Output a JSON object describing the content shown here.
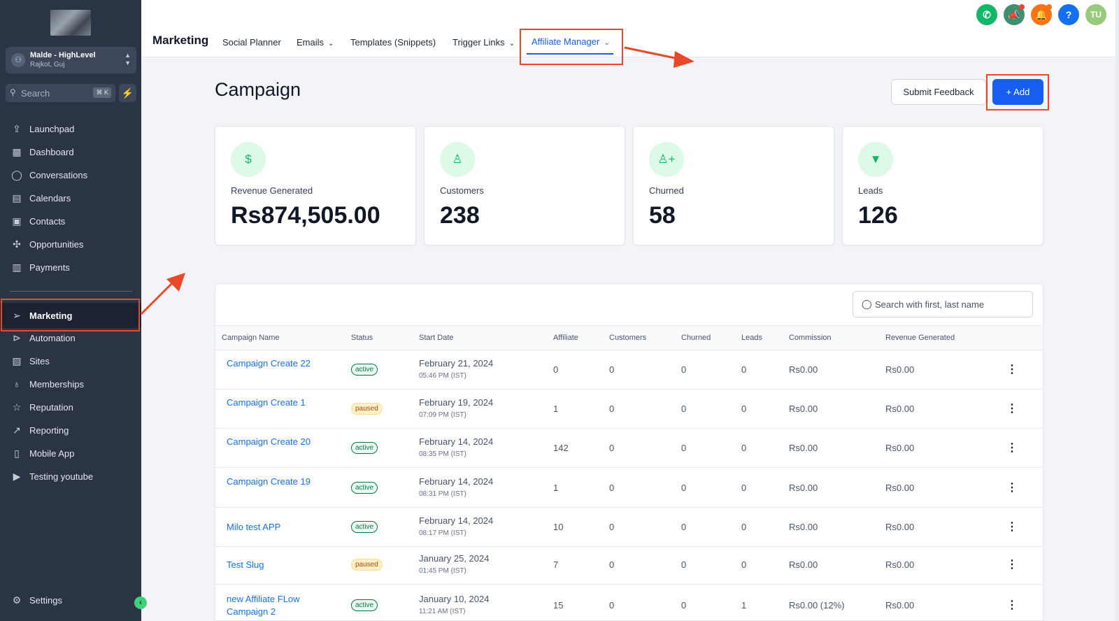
{
  "sidebar": {
    "account": {
      "name": "Malde - HighLevel",
      "location": "Rajkot, Guj"
    },
    "search": {
      "placeholder": "Search",
      "shortcut": "⌘ K"
    },
    "items": [
      {
        "label": "Launchpad",
        "icon": "rocket-icon"
      },
      {
        "label": "Dashboard",
        "icon": "dashboard-icon"
      },
      {
        "label": "Conversations",
        "icon": "chat-icon"
      },
      {
        "label": "Calendars",
        "icon": "calendar-icon"
      },
      {
        "label": "Contacts",
        "icon": "contacts-icon"
      },
      {
        "label": "Opportunities",
        "icon": "opportunities-icon"
      },
      {
        "label": "Payments",
        "icon": "payments-icon"
      },
      {
        "label": "Marketing",
        "icon": "send-icon"
      },
      {
        "label": "Automation",
        "icon": "automation-icon"
      },
      {
        "label": "Sites",
        "icon": "sites-icon"
      },
      {
        "label": "Memberships",
        "icon": "memberships-icon"
      },
      {
        "label": "Reputation",
        "icon": "star-icon"
      },
      {
        "label": "Reporting",
        "icon": "reporting-icon"
      },
      {
        "label": "Mobile App",
        "icon": "mobile-icon"
      },
      {
        "label": "Testing youtube",
        "icon": "youtube-icon"
      }
    ],
    "settings": "Settings"
  },
  "topbar": {
    "title": "Marketing",
    "tabs": [
      {
        "label": "Social Planner"
      },
      {
        "label": "Emails"
      },
      {
        "label": "Templates (Snippets)"
      },
      {
        "label": "Trigger Links"
      },
      {
        "label": "Affiliate Manager"
      }
    ],
    "user_initials": "TU"
  },
  "page": {
    "title": "Campaign",
    "feedback_label": "Submit Feedback",
    "add_label": "Add"
  },
  "stats": [
    {
      "label": "Revenue Generated",
      "value": "Rs874,505.00",
      "icon": "dollar-icon"
    },
    {
      "label": "Customers",
      "value": "238",
      "icon": "user-icon"
    },
    {
      "label": "Churned",
      "value": "58",
      "icon": "user-plus-icon"
    },
    {
      "label": "Leads",
      "value": "126",
      "icon": "funnel-icon"
    }
  ],
  "table": {
    "search_placeholder": "Search with first, last name",
    "headers": [
      "Campaign Name",
      "Status",
      "Start Date",
      "Affiliate",
      "Customers",
      "Churned",
      "Leads",
      "Commission",
      "Revenue Generated"
    ],
    "rows": [
      {
        "name": "Campaign Create 22",
        "status": "active",
        "date": "February 21, 2024",
        "time": "05:46 PM (IST)",
        "affiliate": "0",
        "customers": "0",
        "churned": "0",
        "leads": "0",
        "commission": "Rs0.00",
        "revenue": "Rs0.00"
      },
      {
        "name": "Campaign Create 1",
        "status": "paused",
        "date": "February 19, 2024",
        "time": "07:09 PM (IST)",
        "affiliate": "1",
        "customers": "0",
        "churned": "0",
        "leads": "0",
        "commission": "Rs0.00",
        "revenue": "Rs0.00"
      },
      {
        "name": "Campaign Create 20",
        "status": "active",
        "date": "February 14, 2024",
        "time": "08:35 PM (IST)",
        "affiliate": "142",
        "customers": "0",
        "churned": "0",
        "leads": "0",
        "commission": "Rs0.00",
        "revenue": "Rs0.00"
      },
      {
        "name": "Campaign Create 19",
        "status": "active",
        "date": "February 14, 2024",
        "time": "08:31 PM (IST)",
        "affiliate": "1",
        "customers": "0",
        "churned": "0",
        "leads": "0",
        "commission": "Rs0.00",
        "revenue": "Rs0.00"
      },
      {
        "name": "Milo test APP",
        "status": "active",
        "date": "February 14, 2024",
        "time": "08:17 PM (IST)",
        "affiliate": "10",
        "customers": "0",
        "churned": "0",
        "leads": "0",
        "commission": "Rs0.00",
        "revenue": "Rs0.00"
      },
      {
        "name": "Test Slug",
        "status": "paused",
        "date": "January 25, 2024",
        "time": "01:45 PM (IST)",
        "affiliate": "7",
        "customers": "0",
        "churned": "0",
        "leads": "0",
        "commission": "Rs0.00",
        "revenue": "Rs0.00"
      },
      {
        "name": "new Affiliate FLow Campaign 2",
        "status": "active",
        "date": "January 10, 2024",
        "time": "11:21 AM (IST)",
        "affiliate": "15",
        "customers": "0",
        "churned": "0",
        "leads": "1",
        "commission": "Rs0.00 (12%)",
        "revenue": "Rs0.00"
      }
    ]
  },
  "colors": {
    "accent": "#155eef",
    "highlight": "#e8492a",
    "sidebar": "#2b3445",
    "success": "#12b76a"
  }
}
